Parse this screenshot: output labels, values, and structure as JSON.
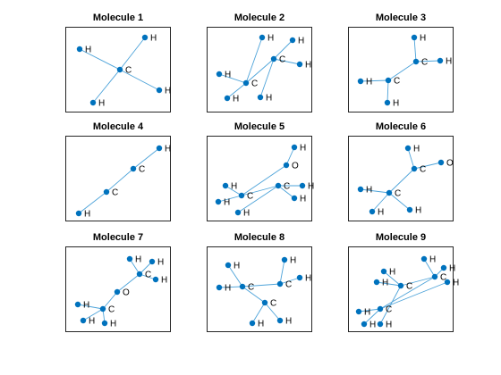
{
  "colors": {
    "node": "#0072BD",
    "edge": "#4DA3D9",
    "axes": "#262626",
    "label": "#000000"
  },
  "panels": [
    {
      "title": "Molecule 1",
      "atoms": [
        "H",
        "H",
        "C",
        "H",
        "H"
      ],
      "bonds": [
        [
          2,
          0
        ],
        [
          2,
          1
        ],
        [
          2,
          3
        ],
        [
          2,
          4
        ]
      ]
    },
    {
      "title": "Molecule 2",
      "atoms": [
        "H",
        "H",
        "C",
        "H",
        "H",
        "C",
        "H",
        "H"
      ],
      "bonds": [
        [
          2,
          0
        ],
        [
          2,
          1
        ],
        [
          2,
          3
        ],
        [
          2,
          5
        ],
        [
          5,
          4
        ],
        [
          5,
          6
        ],
        [
          5,
          7
        ]
      ]
    },
    {
      "title": "Molecule 3",
      "atoms": [
        "H",
        "C",
        "H",
        "H",
        "C",
        "H"
      ],
      "bonds": [
        [
          1,
          0
        ],
        [
          1,
          2
        ],
        [
          1,
          4
        ],
        [
          4,
          3
        ],
        [
          4,
          5
        ]
      ]
    },
    {
      "title": "Molecule 4",
      "atoms": [
        "H",
        "C",
        "C",
        "H"
      ],
      "bonds": [
        [
          0,
          1
        ],
        [
          1,
          2
        ],
        [
          2,
          3
        ]
      ]
    },
    {
      "title": "Molecule 5",
      "atoms": [
        "H",
        "O",
        "H",
        "C",
        "H",
        "H",
        "C",
        "H",
        "H"
      ],
      "bonds": [
        [
          0,
          1
        ],
        [
          1,
          3
        ],
        [
          3,
          2
        ],
        [
          3,
          4
        ],
        [
          3,
          6
        ],
        [
          6,
          5
        ],
        [
          6,
          7
        ],
        [
          6,
          8
        ]
      ]
    },
    {
      "title": "Molecule 6",
      "atoms": [
        "H",
        "O",
        "C",
        "H",
        "C",
        "H",
        "H"
      ],
      "bonds": [
        [
          0,
          2
        ],
        [
          1,
          2
        ],
        [
          2,
          4
        ],
        [
          4,
          3
        ],
        [
          4,
          5
        ],
        [
          4,
          6
        ]
      ]
    },
    {
      "title": "Molecule 7",
      "atoms": [
        "H",
        "H",
        "C",
        "H",
        "O",
        "H",
        "C",
        "H",
        "H"
      ],
      "bonds": [
        [
          0,
          2
        ],
        [
          1,
          2
        ],
        [
          2,
          3
        ],
        [
          2,
          4
        ],
        [
          4,
          6
        ],
        [
          6,
          5
        ],
        [
          6,
          7
        ],
        [
          6,
          8
        ]
      ]
    },
    {
      "title": "Molecule 8",
      "atoms": [
        "H",
        "H",
        "C",
        "C",
        "H",
        "H",
        "C",
        "H",
        "H"
      ],
      "bonds": [
        [
          0,
          2
        ],
        [
          1,
          2
        ],
        [
          2,
          3
        ],
        [
          2,
          6
        ],
        [
          3,
          4
        ],
        [
          3,
          5
        ],
        [
          6,
          7
        ],
        [
          6,
          8
        ]
      ]
    },
    {
      "title": "Molecule 9",
      "atoms": [
        "H",
        "H",
        "H",
        "C",
        "H",
        "C",
        "H",
        "C",
        "H",
        "H",
        "H"
      ],
      "bonds": [
        [
          0,
          5
        ],
        [
          1,
          5
        ],
        [
          2,
          3
        ],
        [
          3,
          4
        ],
        [
          3,
          5
        ],
        [
          5,
          7
        ],
        [
          7,
          6
        ],
        [
          7,
          8
        ],
        [
          7,
          9
        ],
        [
          3,
          10
        ]
      ]
    }
  ]
}
